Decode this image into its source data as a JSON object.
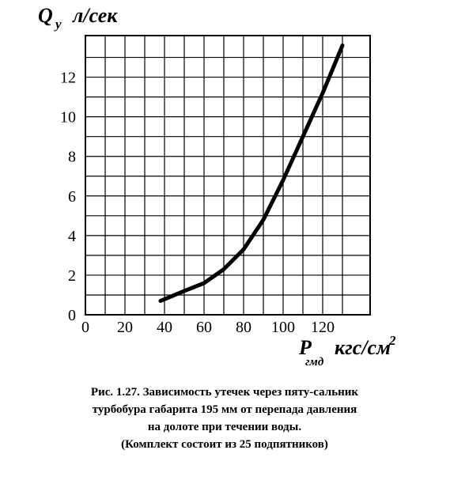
{
  "chart_data": {
    "type": "line",
    "ylabel": {
      "symbol": "Q",
      "subscript": "у",
      "unit": "л/сек"
    },
    "xlabel": {
      "symbol": "P",
      "subscript": "гмд",
      "unit": "кгс/см",
      "superscript": "2"
    },
    "x": [
      38,
      50,
      60,
      70,
      80,
      90,
      100,
      110,
      120,
      130
    ],
    "series": [
      {
        "color": "#000000",
        "values": [
          0.7,
          1.2,
          1.6,
          2.3,
          3.3,
          4.8,
          6.8,
          9.0,
          11.2,
          13.6
        ]
      }
    ],
    "xlim": [
      0,
      144
    ],
    "ylim": [
      0,
      14.1
    ],
    "xticks": [
      0,
      20,
      40,
      60,
      80,
      100,
      120
    ],
    "yticks": [
      0,
      2,
      4,
      6,
      8,
      10,
      12
    ],
    "grid": "minor",
    "caption": [
      "Рис. 1.27. Зависимость утечек через пяту-сальник",
      "турбобура габарита 195 мм от перепада давления",
      "на долоте при течении воды.",
      "(Комплект состоит из 25 подпятников)"
    ]
  }
}
